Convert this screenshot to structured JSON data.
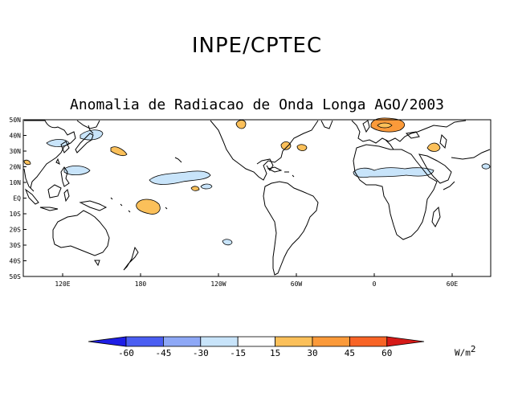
{
  "header": {
    "org": "INPE/CPTEC",
    "title": "Anomalia de Radiacao de Onda Longa AGO/2003"
  },
  "map": {
    "lat_labels": [
      "50N",
      "40N",
      "30N",
      "20N",
      "10N",
      "EQ",
      "10S",
      "20S",
      "30S",
      "40S",
      "50S"
    ],
    "lon_labels": [
      "120E",
      "180",
      "120W",
      "60W",
      "0",
      "60E"
    ],
    "lat_range": [
      -50,
      50
    ],
    "lon_range_note": "100E eastward to 100E"
  },
  "colorbar": {
    "ticks": [
      "-60",
      "-45",
      "-30",
      "-15",
      "15",
      "30",
      "45",
      "60"
    ],
    "colors": [
      "#1e1ee6",
      "#4a5ef2",
      "#8ea8f6",
      "#c8e4fa",
      "#ffffff",
      "#fbc05a",
      "#fb9a3a",
      "#f86426",
      "#d61a18",
      "#b40000"
    ],
    "unit": "W/m",
    "unit_power": "2"
  }
}
